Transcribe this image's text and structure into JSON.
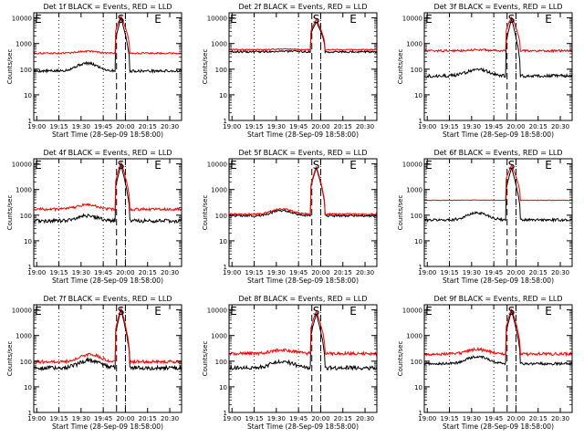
{
  "figure": {
    "start_label": "Start Time (28-Sep-09 18:58:00)",
    "ylabel": "Counts/sec",
    "x_ticks": [
      "19:00",
      "19:15",
      "19:30",
      "19:45",
      "20:00",
      "20:15",
      "20:30"
    ],
    "y_ticks": [
      "1",
      "10",
      "100",
      "1000",
      "10000"
    ],
    "marker_S": "S",
    "marker_E": "E",
    "colors": {
      "events": "#000000",
      "lld": "#ff0000",
      "axes": "#000000"
    }
  },
  "chart_data": [
    {
      "type": "line",
      "title": "Det 1f BLACK = Events, RED = LLD",
      "xlabel": "Start Time (28-Sep-09 18:58:00)",
      "ylabel": "Counts/sec",
      "xlim_min": [
        0,
        100
      ],
      "ylim_log10": [
        0,
        4.2
      ],
      "s_lines_min": [
        56,
        62
      ],
      "e_labels": [
        "E",
        "E"
      ],
      "e_label_pos_min": [
        3,
        84
      ],
      "s_label_pos_min": [
        59
      ],
      "vertical_dotted_min": [
        17,
        47,
        62
      ],
      "series": [
        {
          "name": "Events",
          "baseline": 85,
          "hump_center": 36,
          "hump_amp": 1.0,
          "flare_peak": 10000,
          "mid_plateau": 200,
          "noise": 0.05
        },
        {
          "name": "LLD",
          "baseline": 420,
          "hump_center": 36,
          "hump_amp": 0.2,
          "flare_peak": 12000,
          "mid_plateau": 800,
          "noise": 0.03
        }
      ]
    },
    {
      "type": "line",
      "title": "Det 2f BLACK = Events, RED = LLD",
      "xlabel": "Start Time (28-Sep-09 18:58:00)",
      "ylabel": "Counts/sec",
      "xlim_min": [
        0,
        100
      ],
      "ylim_log10": [
        0,
        4.2
      ],
      "s_lines_min": [
        56,
        62
      ],
      "e_labels": [
        "E",
        "E"
      ],
      "e_label_pos_min": [
        3,
        84
      ],
      "s_label_pos_min": [
        59
      ],
      "vertical_dotted_min": [
        17,
        47,
        62
      ],
      "series": [
        {
          "name": "Events",
          "baseline": 480,
          "hump_center": 36,
          "hump_amp": 0.05,
          "flare_peak": 7000,
          "mid_plateau": 1500,
          "noise": 0.04
        },
        {
          "name": "LLD",
          "baseline": 580,
          "hump_center": 36,
          "hump_amp": 0.05,
          "flare_peak": 9000,
          "mid_plateau": 2000,
          "noise": 0.02
        }
      ]
    },
    {
      "type": "line",
      "title": "Det 3f BLACK = Events, RED = LLD",
      "xlabel": "Start Time (28-Sep-09 18:58:00)",
      "ylabel": "Counts/sec",
      "xlim_min": [
        0,
        100
      ],
      "ylim_log10": [
        0,
        4.2
      ],
      "s_lines_min": [
        56,
        62
      ],
      "e_labels": [
        "E",
        "E"
      ],
      "e_label_pos_min": [
        3,
        84
      ],
      "s_label_pos_min": [
        59
      ],
      "vertical_dotted_min": [
        17,
        47,
        62
      ],
      "series": [
        {
          "name": "Events",
          "baseline": 55,
          "hump_center": 36,
          "hump_amp": 0.8,
          "flare_peak": 9000,
          "mid_plateau": 200,
          "noise": 0.06
        },
        {
          "name": "LLD",
          "baseline": 520,
          "hump_center": 36,
          "hump_amp": 0.1,
          "flare_peak": 11000,
          "mid_plateau": 900,
          "noise": 0.04
        }
      ]
    },
    {
      "type": "line",
      "title": "Det 4f BLACK = Events, RED = LLD",
      "xlabel": "Start Time (28-Sep-09 18:58:00)",
      "ylabel": "Counts/sec",
      "xlim_min": [
        0,
        100
      ],
      "ylim_log10": [
        0,
        4.2
      ],
      "s_lines_min": [
        56,
        62
      ],
      "e_labels": [
        "E",
        "E"
      ],
      "e_label_pos_min": [
        3,
        84
      ],
      "s_label_pos_min": [
        59
      ],
      "vertical_dotted_min": [
        17,
        47,
        62
      ],
      "series": [
        {
          "name": "Events",
          "baseline": 60,
          "hump_center": 36,
          "hump_amp": 0.6,
          "flare_peak": 9000,
          "mid_plateau": 300,
          "noise": 0.07
        },
        {
          "name": "LLD",
          "baseline": 170,
          "hump_center": 36,
          "hump_amp": 0.5,
          "flare_peak": 12000,
          "mid_plateau": 700,
          "noise": 0.05
        }
      ]
    },
    {
      "type": "line",
      "title": "Det 5f BLACK = Events, RED = LLD",
      "xlabel": "Start Time (28-Sep-09 18:58:00)",
      "ylabel": "Counts/sec",
      "xlim_min": [
        0,
        100
      ],
      "ylim_log10": [
        0,
        4.2
      ],
      "s_lines_min": [
        56,
        62
      ],
      "e_labels": [
        "E",
        "E"
      ],
      "e_label_pos_min": [
        3,
        84
      ],
      "s_label_pos_min": [
        59
      ],
      "vertical_dotted_min": [
        17,
        47,
        62
      ],
      "series": [
        {
          "name": "Events",
          "baseline": 95,
          "hump_center": 36,
          "hump_amp": 0.6,
          "flare_peak": 7000,
          "mid_plateau": 400,
          "noise": 0.04
        },
        {
          "name": "LLD",
          "baseline": 110,
          "hump_center": 36,
          "hump_amp": 0.6,
          "flare_peak": 8000,
          "mid_plateau": 450,
          "noise": 0.03
        }
      ]
    },
    {
      "type": "line",
      "title": "Det 6f BLACK = Events, RED = LLD",
      "xlabel": "Start Time (28-Sep-09 18:58:00)",
      "ylabel": "Counts/sec",
      "xlim_min": [
        0,
        100
      ],
      "ylim_log10": [
        0,
        4.2
      ],
      "s_lines_min": [
        56,
        62
      ],
      "e_labels": [
        "E",
        "E"
      ],
      "e_label_pos_min": [
        3,
        84
      ],
      "s_label_pos_min": [
        59
      ],
      "vertical_dotted_min": [
        17,
        47,
        62
      ],
      "series": [
        {
          "name": "Events",
          "baseline": 65,
          "hump_center": 36,
          "hump_amp": 0.9,
          "flare_peak": 7000,
          "mid_plateau": 300,
          "noise": 0.05
        },
        {
          "name": "LLD",
          "baseline": 380,
          "hump_center": 36,
          "hump_amp": 0.02,
          "flare_peak": 9000,
          "mid_plateau": 1200,
          "noise": 0.01
        }
      ]
    },
    {
      "type": "line",
      "title": "Det 7f BLACK = Events, RED = LLD",
      "xlabel": "Start Time (28-Sep-09 18:58:00)",
      "ylabel": "Counts/sec",
      "xlim_min": [
        0,
        100
      ],
      "ylim_log10": [
        0,
        4.2
      ],
      "s_lines_min": [
        56,
        62
      ],
      "e_labels": [
        "E",
        "E"
      ],
      "e_label_pos_min": [
        3,
        84
      ],
      "s_label_pos_min": [
        59
      ],
      "vertical_dotted_min": [
        17,
        47,
        62
      ],
      "series": [
        {
          "name": "Events",
          "baseline": 55,
          "hump_center": 38,
          "hump_amp": 1.0,
          "flare_peak": 10000,
          "mid_plateau": 250,
          "noise": 0.08
        },
        {
          "name": "LLD",
          "baseline": 95,
          "hump_center": 38,
          "hump_amp": 0.9,
          "flare_peak": 12000,
          "mid_plateau": 400,
          "noise": 0.06
        }
      ]
    },
    {
      "type": "line",
      "title": "Det 8f BLACK = Events, RED = LLD",
      "xlabel": "Start Time (28-Sep-09 18:58:00)",
      "ylabel": "Counts/sec",
      "xlim_min": [
        0,
        100
      ],
      "ylim_log10": [
        0,
        4.2
      ],
      "s_lines_min": [
        56,
        62
      ],
      "e_labels": [
        "E",
        "E"
      ],
      "e_label_pos_min": [
        3,
        84
      ],
      "s_label_pos_min": [
        59
      ],
      "vertical_dotted_min": [
        17,
        47,
        62
      ],
      "series": [
        {
          "name": "Events",
          "baseline": 55,
          "hump_center": 36,
          "hump_amp": 0.8,
          "flare_peak": 7000,
          "mid_plateau": 300,
          "noise": 0.08
        },
        {
          "name": "LLD",
          "baseline": 200,
          "hump_center": 36,
          "hump_amp": 0.4,
          "flare_peak": 9000,
          "mid_plateau": 700,
          "noise": 0.06
        }
      ]
    },
    {
      "type": "line",
      "title": "Det 9f BLACK = Events, RED = LLD",
      "xlabel": "Start Time (28-Sep-09 18:58:00)",
      "ylabel": "Counts/sec",
      "xlim_min": [
        0,
        100
      ],
      "ylim_log10": [
        0,
        4.2
      ],
      "s_lines_min": [
        56,
        62
      ],
      "e_labels": [
        "E",
        "E"
      ],
      "e_label_pos_min": [
        3,
        84
      ],
      "s_label_pos_min": [
        59
      ],
      "vertical_dotted_min": [
        17,
        47,
        62
      ],
      "series": [
        {
          "name": "Events",
          "baseline": 80,
          "hump_center": 36,
          "hump_amp": 0.9,
          "flare_peak": 9000,
          "mid_plateau": 250,
          "noise": 0.05
        },
        {
          "name": "LLD",
          "baseline": 190,
          "hump_center": 36,
          "hump_amp": 0.5,
          "flare_peak": 11000,
          "mid_plateau": 600,
          "noise": 0.06
        }
      ]
    }
  ]
}
